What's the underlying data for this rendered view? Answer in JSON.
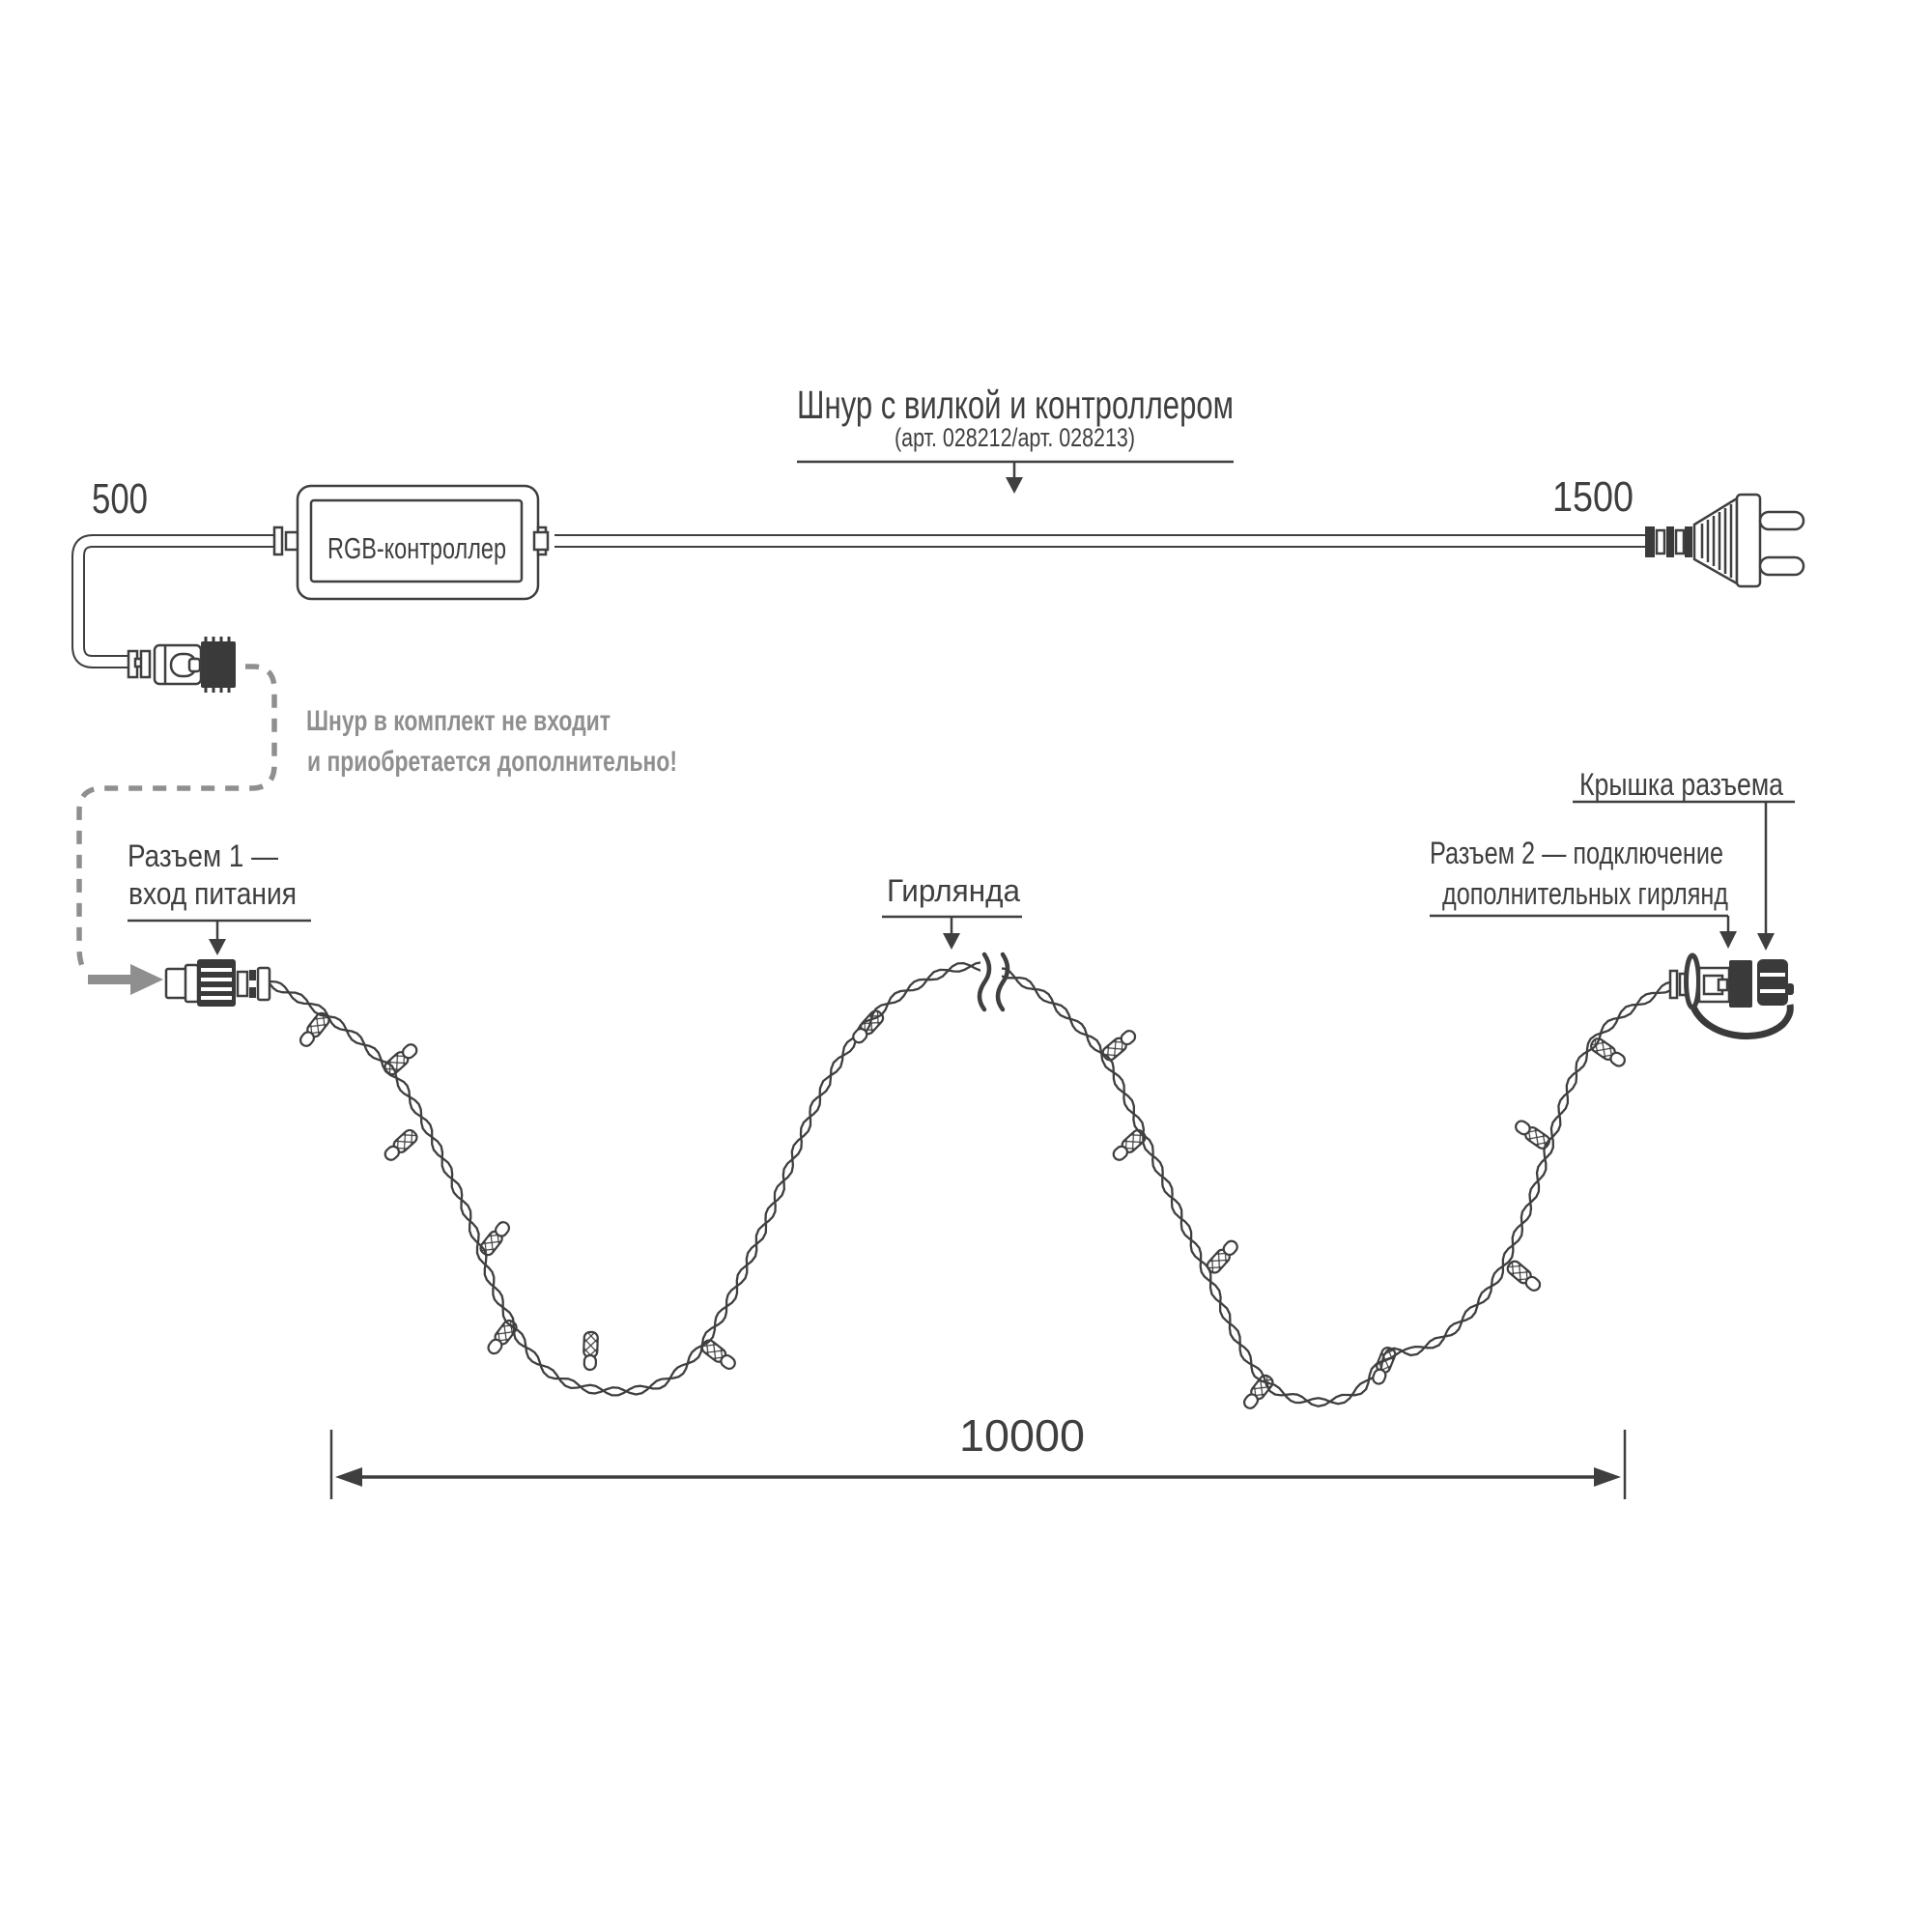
{
  "palette": {
    "ink": "#3f3f3f",
    "gray": "#8f8f8f",
    "background": "#ffffff"
  },
  "header": {
    "title": "Шнур с вилкой и контроллером",
    "subtitle": "(арт. 028212/арт. 028213)"
  },
  "dimensions": {
    "cord_left_mm": "500",
    "cord_right_mm": "1500",
    "garland_length_mm": "10000"
  },
  "controller": {
    "label": "RGB-контроллер"
  },
  "note": {
    "line1": "Шнур в комплект не входит",
    "line2": "и приобретается дополнительно!"
  },
  "labels": {
    "connector1_line1": "Разъем 1 —",
    "connector1_line2": "вход питания",
    "garland": "Гирлянда",
    "cap": "Крышка разъема",
    "connector2_line1": "Разъем 2 — подключение",
    "connector2_line2": "дополнительных гирлянд"
  }
}
